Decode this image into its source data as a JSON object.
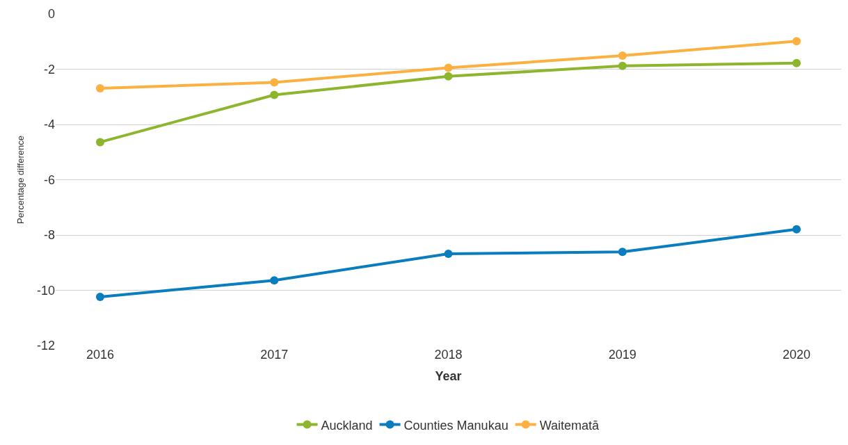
{
  "chart_data": {
    "type": "line",
    "xlabel": "Year",
    "ylabel": "Percentage difference",
    "categories": [
      "2016",
      "2017",
      "2018",
      "2019",
      "2020"
    ],
    "series": [
      {
        "name": "Auckland",
        "color": "#8db52e",
        "values": [
          -4.64,
          -2.93,
          -2.26,
          -1.88,
          -1.78
        ]
      },
      {
        "name": "Counties Manukau",
        "color": "#0a7dbf",
        "values": [
          -10.24,
          -9.64,
          -8.68,
          -8.61,
          -7.79
        ]
      },
      {
        "name": "Waitematā",
        "color": "#fbb040",
        "values": [
          -2.69,
          -2.48,
          -1.95,
          -1.51,
          -0.99
        ]
      }
    ],
    "ylim": [
      -12,
      0
    ],
    "yticks": [
      -12,
      -10,
      -8,
      -6,
      -4,
      -2,
      0
    ],
    "grid": "y",
    "legend": "bottom",
    "marker": "circle",
    "line_style": "solid"
  }
}
